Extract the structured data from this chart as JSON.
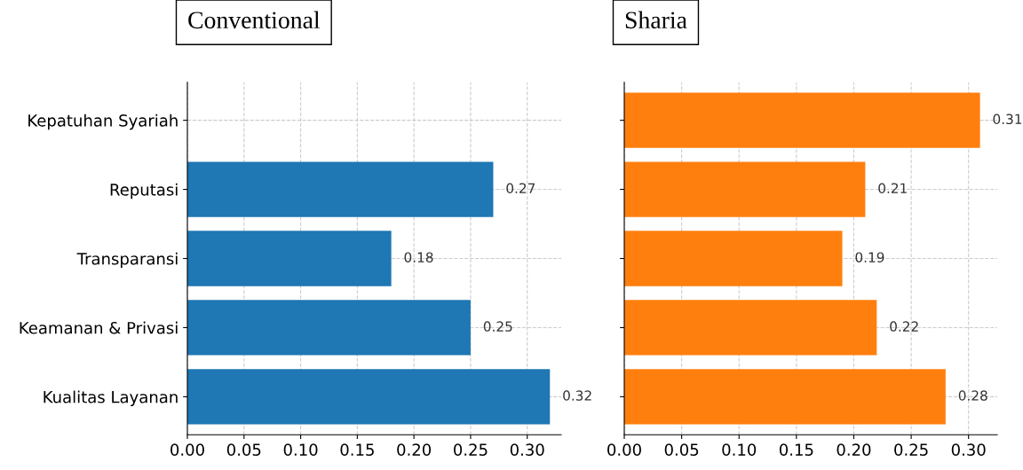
{
  "chart_data": [
    {
      "type": "bar",
      "orientation": "horizontal",
      "title": "Conventional",
      "categories": [
        "Kepatuhan Syariah",
        "Reputasi",
        "Transparansi",
        "Keamanan & Privasi",
        "Kualitas Layanan"
      ],
      "values": [
        null,
        0.27,
        0.18,
        0.25,
        0.32
      ],
      "color": "#1f77b4",
      "xlim": [
        0,
        0.33
      ],
      "xticks": [
        "0.00",
        "0.05",
        "0.10",
        "0.15",
        "0.20",
        "0.25",
        "0.30"
      ],
      "grid": true,
      "data_labels": true
    },
    {
      "type": "bar",
      "orientation": "horizontal",
      "title": "Sharia",
      "categories": [
        null,
        null,
        null,
        null,
        null
      ],
      "values": [
        0.31,
        0.21,
        0.19,
        0.22,
        0.28
      ],
      "color": "#ff7f0e",
      "xlim": [
        0,
        0.325
      ],
      "xticks": [
        "0.00",
        "0.05",
        "0.10",
        "0.15",
        "0.20",
        "0.25",
        "0.30"
      ],
      "grid": true,
      "data_labels": true,
      "tick_labels": "x"
    }
  ]
}
